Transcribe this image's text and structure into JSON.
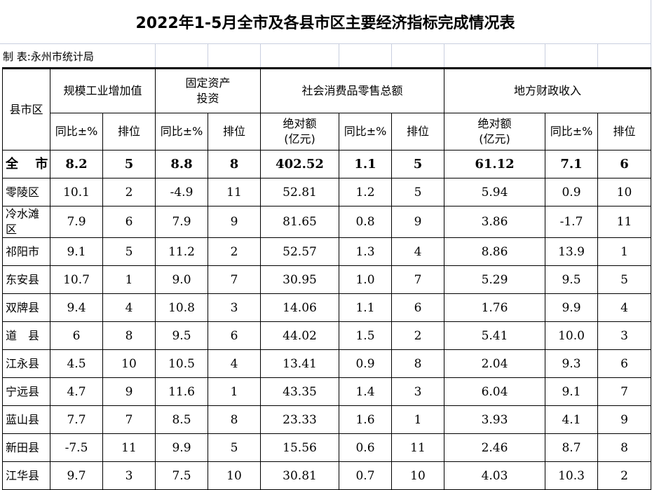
{
  "title": "2022年1-5月全市及各县市区主要经济指标完成情况表",
  "maker": "制 表:永州市统计局",
  "headers": {
    "region": "县市区",
    "industry": "规模工业增加值",
    "fixed": "固定资产\n投资",
    "retail": "社会消费品零售总额",
    "fiscal": "地方财政收入",
    "yoy": "同比±%",
    "rank": "排位",
    "abs": "绝对额\n(亿元)"
  },
  "total": {
    "name": "全　 市",
    "vals": [
      "8.2",
      "5",
      "8.8",
      "8",
      "402.52",
      "1.1",
      "5",
      "61.12",
      "7.1",
      "6"
    ]
  },
  "rows": [
    {
      "name": "零陵区",
      "vals": [
        "10.1",
        "2",
        "-4.9",
        "11",
        "52.81",
        "1.2",
        "5",
        "5.94",
        "0.9",
        "10"
      ]
    },
    {
      "name": "冷水滩区",
      "vals": [
        "7.9",
        "6",
        "7.9",
        "9",
        "81.65",
        "0.8",
        "9",
        "3.86",
        "-1.7",
        "11"
      ]
    },
    {
      "name": "祁阳市",
      "vals": [
        "9.1",
        "5",
        "11.2",
        "2",
        "52.57",
        "1.3",
        "4",
        "8.86",
        "13.9",
        "1"
      ]
    },
    {
      "name": "东安县",
      "vals": [
        "10.7",
        "1",
        "9.0",
        "7",
        "30.95",
        "1.0",
        "7",
        "5.29",
        "9.5",
        "5"
      ]
    },
    {
      "name": "双牌县",
      "vals": [
        "9.4",
        "4",
        "10.8",
        "3",
        "14.06",
        "1.1",
        "6",
        "1.76",
        "9.9",
        "4"
      ]
    },
    {
      "name": "道　县",
      "vals": [
        "6",
        "8",
        "9.5",
        "6",
        "44.02",
        "1.5",
        "2",
        "5.41",
        "10.0",
        "3"
      ]
    },
    {
      "name": "江永县",
      "vals": [
        "4.5",
        "10",
        "10.5",
        "4",
        "13.41",
        "0.9",
        "8",
        "2.04",
        "9.3",
        "6"
      ]
    },
    {
      "name": "宁远县",
      "vals": [
        "4.7",
        "9",
        "11.6",
        "1",
        "43.35",
        "1.4",
        "3",
        "6.04",
        "9.1",
        "7"
      ]
    },
    {
      "name": "蓝山县",
      "vals": [
        "7.7",
        "7",
        "8.5",
        "8",
        "23.33",
        "1.6",
        "1",
        "3.93",
        "4.1",
        "9"
      ]
    },
    {
      "name": "新田县",
      "vals": [
        "-7.5",
        "11",
        "9.9",
        "5",
        "15.56",
        "0.6",
        "11",
        "2.46",
        "8.7",
        "8"
      ]
    },
    {
      "name": "江华县",
      "vals": [
        "9.7",
        "3",
        "7.5",
        "10",
        "30.81",
        "0.7",
        "10",
        "4.03",
        "10.3",
        "2"
      ]
    }
  ]
}
